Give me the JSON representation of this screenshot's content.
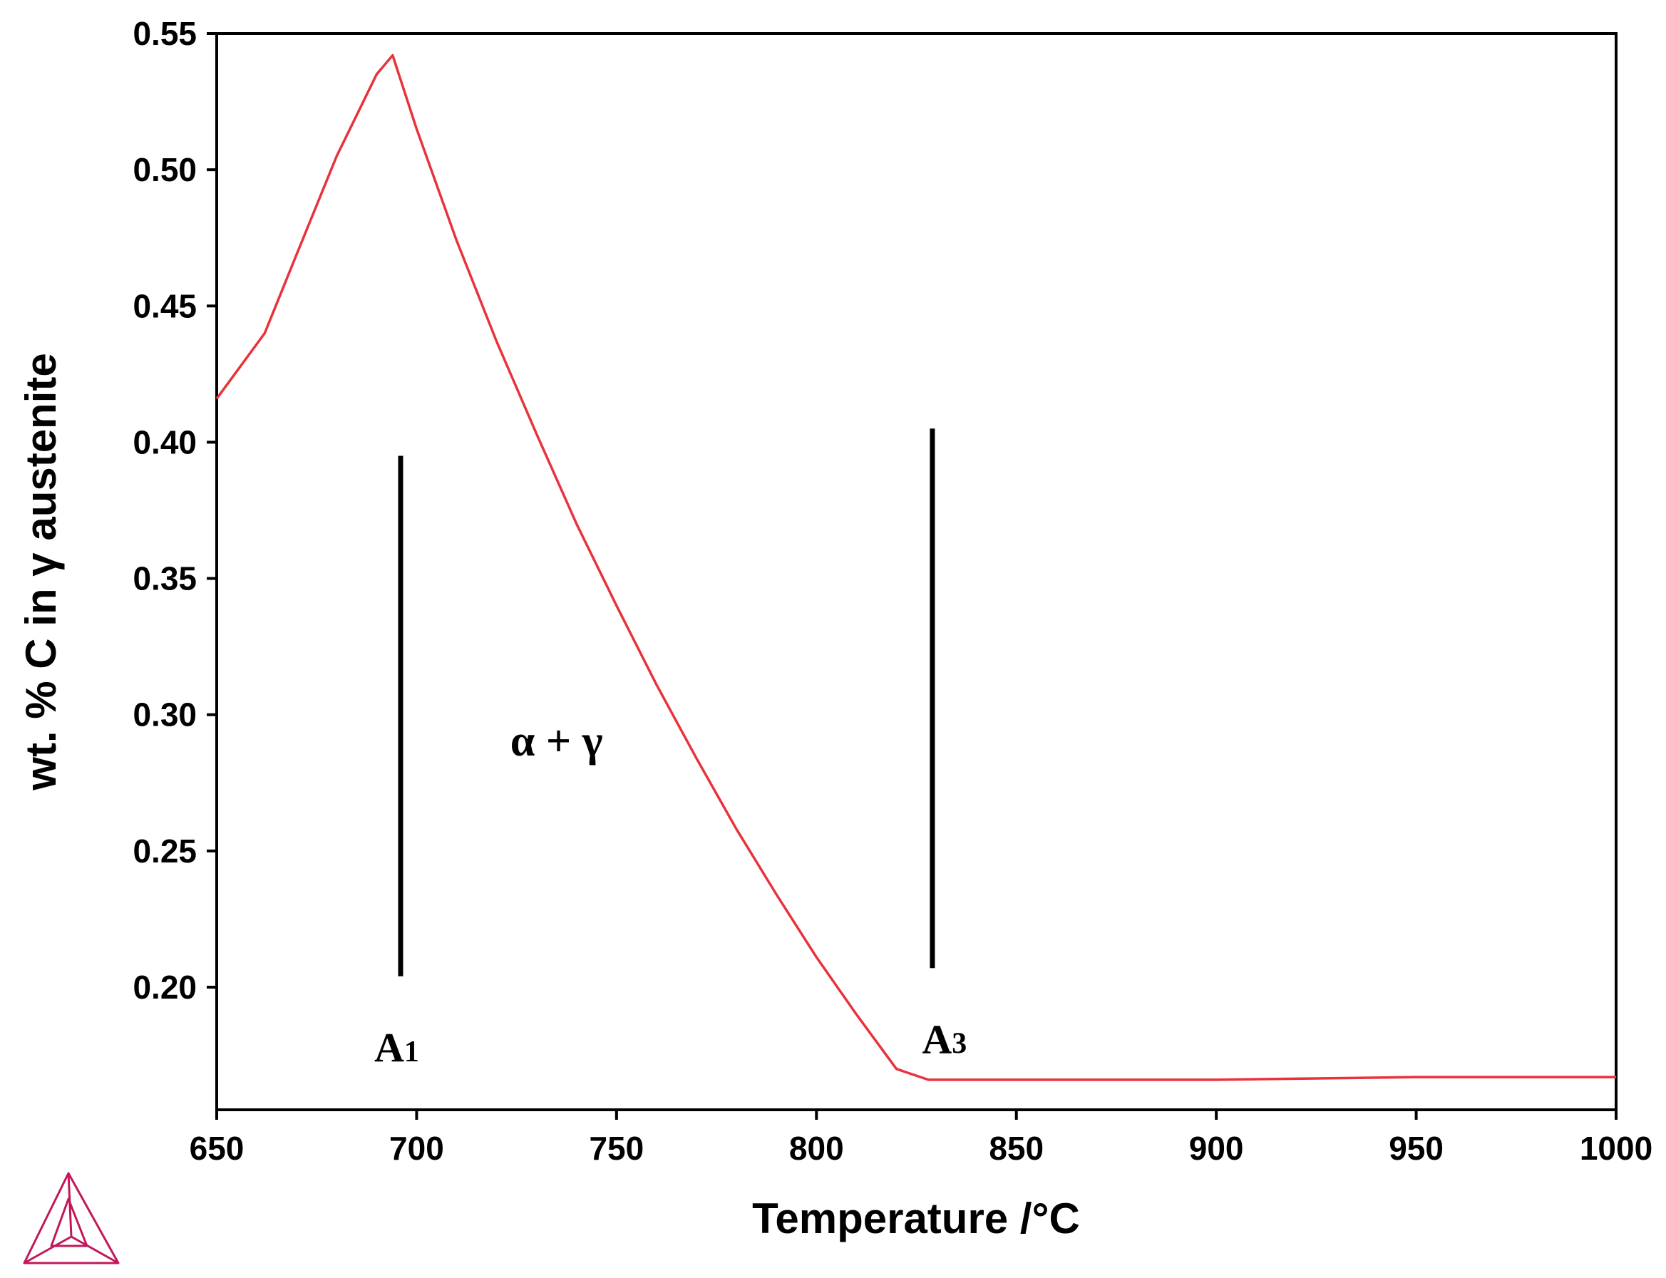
{
  "chart_data": {
    "type": "line",
    "xlabel": "Temperature /°C",
    "ylabel": "wt. % C in γ austenite",
    "xlim": [
      650,
      1000
    ],
    "ylim": [
      0.155,
      0.55
    ],
    "x_ticks": [
      650,
      700,
      750,
      800,
      850,
      900,
      950,
      1000
    ],
    "x_tick_labels": [
      "650",
      "700",
      "750",
      "800",
      "850",
      "900",
      "950",
      "1000"
    ],
    "y_ticks": [
      0.2,
      0.25,
      0.3,
      0.35,
      0.4,
      0.45,
      0.5,
      0.55
    ],
    "y_tick_labels": [
      "0.20",
      "0.25",
      "0.30",
      "0.35",
      "0.40",
      "0.45",
      "0.50",
      "0.55"
    ],
    "grid": false,
    "series": [
      {
        "color": "#e8323c",
        "x": [
          650,
          662,
          670,
          680,
          690,
          694,
          700,
          710,
          720,
          730,
          740,
          750,
          760,
          770,
          780,
          790,
          800,
          810,
          820,
          828,
          850,
          900,
          950,
          1000
        ],
        "y": [
          0.416,
          0.44,
          0.469,
          0.505,
          0.535,
          0.542,
          0.515,
          0.474,
          0.437,
          0.403,
          0.37,
          0.34,
          0.311,
          0.284,
          0.258,
          0.234,
          0.211,
          0.19,
          0.17,
          0.166,
          0.166,
          0.166,
          0.167,
          0.167
        ]
      }
    ],
    "annotations": [
      {
        "id": "a1",
        "text": "A",
        "subscript": "1",
        "line_x": 696,
        "line_y": [
          0.204,
          0.395
        ],
        "label_x": 695,
        "label_y": 0.178
      },
      {
        "id": "a3",
        "text": "A",
        "subscript": "3",
        "line_x": 829,
        "line_y": [
          0.207,
          0.405
        ],
        "label_x": 832,
        "label_y": 0.181
      },
      {
        "id": "phase",
        "text": "α + γ",
        "x": 735,
        "y": 0.285
      }
    ]
  },
  "logo": {
    "name": "thermo-calc-triangle-logo",
    "color": "#c2185b"
  }
}
